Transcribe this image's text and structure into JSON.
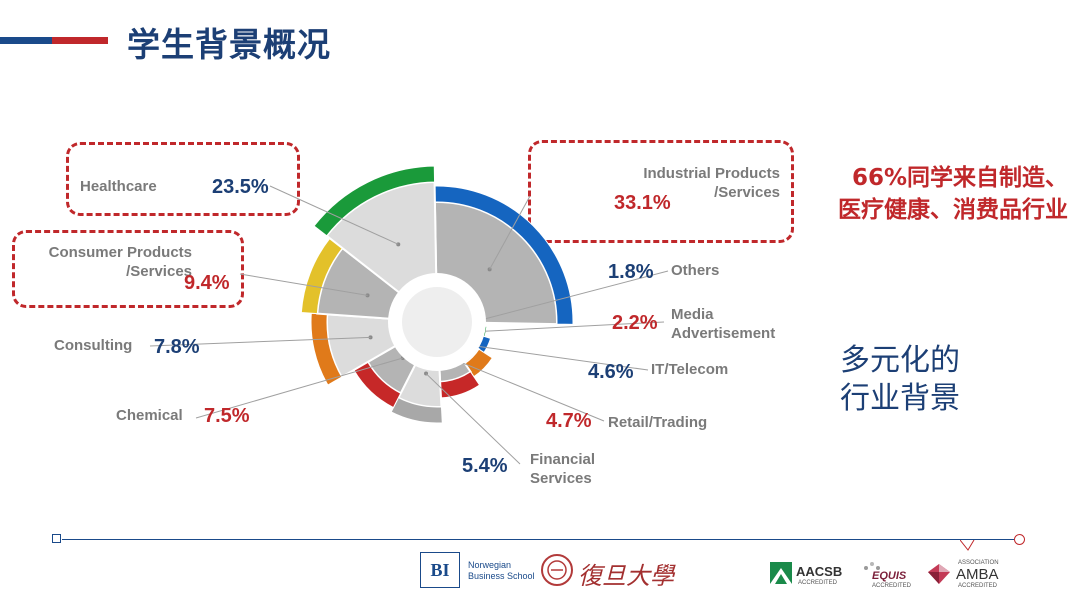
{
  "header": {
    "title": "学生背景概况"
  },
  "chart_data": {
    "type": "pie",
    "variant": "polar-area-with-outer-arcs",
    "categories": [
      "Industrial Products /Services",
      "Others",
      "Media Advertisement",
      "IT/Telecom",
      "Retail/Trading",
      "Financial Services",
      "Chemical",
      "Consulting",
      "Consumer Products /Services",
      "Healthcare"
    ],
    "values": [
      33.1,
      1.8,
      2.2,
      4.6,
      4.7,
      5.4,
      7.5,
      7.8,
      9.4,
      23.5
    ],
    "labels": [
      {
        "key": "industrial",
        "name_lines": [
          "Industrial Products",
          "/Services"
        ],
        "value_text": "33.1%",
        "color": "#1565c0"
      },
      {
        "key": "others",
        "name_lines": [
          "Others"
        ],
        "value_text": "1.8%",
        "color": "#1a9a3a"
      },
      {
        "key": "media",
        "name_lines": [
          "Media",
          "Advertisement"
        ],
        "value_text": "2.2%",
        "color": "#1565c0"
      },
      {
        "key": "it",
        "name_lines": [
          "IT/Telecom"
        ],
        "value_text": "4.6%",
        "color": "#e07a1a"
      },
      {
        "key": "retail",
        "name_lines": [
          "Retail/Trading"
        ],
        "value_text": "4.7%",
        "color": "#c62828"
      },
      {
        "key": "financial",
        "name_lines": [
          "Financial",
          "Services"
        ],
        "value_text": "5.4%",
        "color": "#a8a8a8"
      },
      {
        "key": "chemical",
        "name_lines": [
          "Chemical"
        ],
        "value_text": "7.5%",
        "color": "#c62828"
      },
      {
        "key": "consulting",
        "name_lines": [
          "Consulting"
        ],
        "value_text": "7.8%",
        "color": "#e07a1a"
      },
      {
        "key": "consumer",
        "name_lines": [
          "Consumer Products",
          "/Services"
        ],
        "value_text": "9.4%",
        "color": "#e3c12a"
      },
      {
        "key": "healthcare",
        "name_lines": [
          "Healthcare"
        ],
        "value_text": "23.5%",
        "color": "#1a9a3a"
      }
    ]
  },
  "callouts": {
    "highlight_lines": [
      "66%同学来自制造、",
      "医疗健康、消费品行业"
    ],
    "diverse_lines": [
      "多元化的",
      "行业背景"
    ]
  },
  "footer": {
    "bi_mark": "BI",
    "bi_name_lines": [
      "Norwegian",
      "Business School"
    ],
    "fudan_name": "復旦大學",
    "aacsb": "AACSB",
    "aacsb_sub": "ACCREDITED",
    "equis": "EQUIS",
    "equis_sub": "ACCREDITED",
    "amba_top": "ASSOCIATION",
    "amba": "AMBA",
    "amba_sub": "ACCREDITED"
  },
  "colors": {
    "navy": "#1c3f75",
    "red": "#c0282b",
    "slice_light": "#dcdcdc",
    "slice_dark": "#b4b4b4"
  }
}
